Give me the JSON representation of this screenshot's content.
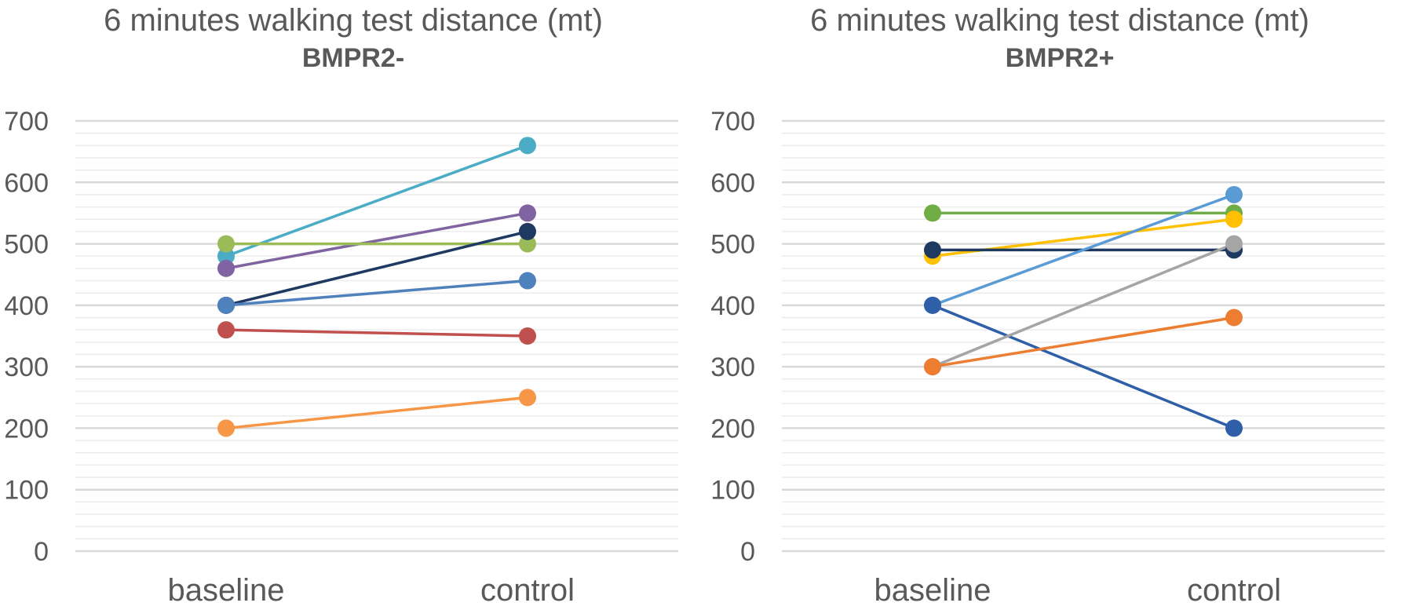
{
  "chart_data": [
    {
      "type": "line",
      "title": "6 minutes walking test distance (mt)",
      "subtitle": "BMPR2-",
      "categories": [
        "baseline",
        "control"
      ],
      "ylim": [
        0,
        700
      ],
      "yticks": [
        0,
        100,
        200,
        300,
        400,
        500,
        600,
        700
      ],
      "grid": true,
      "series": [
        {
          "values": [
            480,
            660
          ],
          "color": "#4bacc6"
        },
        {
          "values": [
            460,
            550
          ],
          "color": "#8064a2"
        },
        {
          "values": [
            500,
            500
          ],
          "color": "#9bbb59"
        },
        {
          "values": [
            400,
            520
          ],
          "color": "#1f3a60"
        },
        {
          "values": [
            400,
            440
          ],
          "color": "#4f81bd"
        },
        {
          "values": [
            360,
            350
          ],
          "color": "#c0504d"
        },
        {
          "values": [
            200,
            250
          ],
          "color": "#f79646"
        }
      ]
    },
    {
      "type": "line",
      "title": "6 minutes walking test distance (mt)",
      "subtitle": "BMPR2+",
      "categories": [
        "baseline",
        "control"
      ],
      "ylim": [
        0,
        700
      ],
      "yticks": [
        0,
        100,
        200,
        300,
        400,
        500,
        600,
        700
      ],
      "grid": true,
      "series": [
        {
          "values": [
            550,
            550
          ],
          "color": "#70ad47"
        },
        {
          "values": [
            480,
            540
          ],
          "color": "#ffc000"
        },
        {
          "values": [
            490,
            490
          ],
          "color": "#1f3a60"
        },
        {
          "values": [
            400,
            580
          ],
          "color": "#5b9bd5"
        },
        {
          "values": [
            400,
            200
          ],
          "color": "#2e5fa8"
        },
        {
          "values": [
            300,
            500
          ],
          "color": "#a5a5a5"
        },
        {
          "values": [
            300,
            380
          ],
          "color": "#ed7d31"
        }
      ]
    }
  ]
}
